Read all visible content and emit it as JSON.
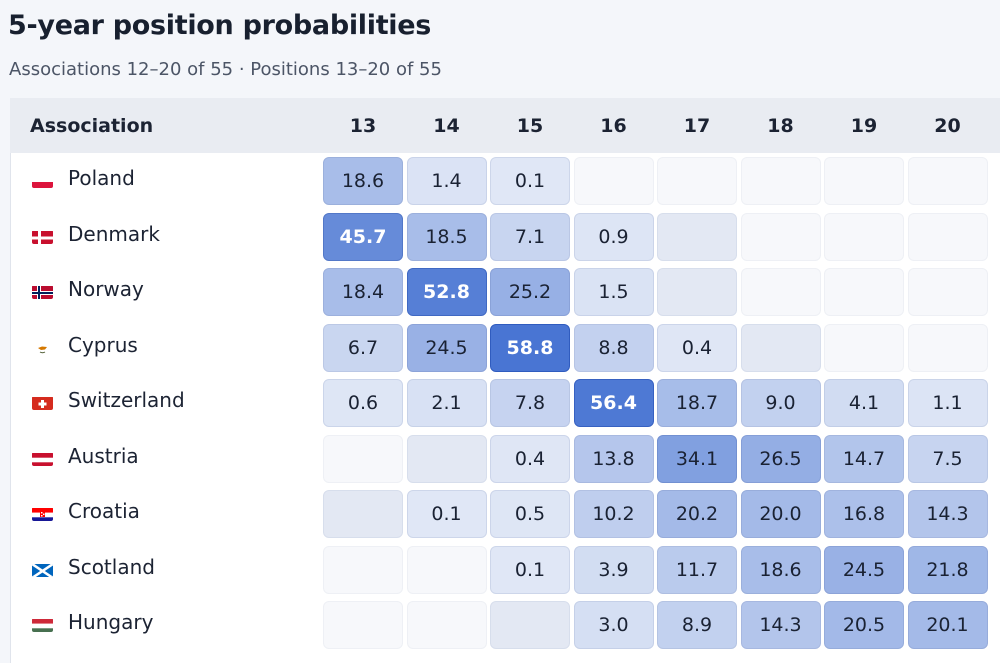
{
  "title": "5-year position probabilities",
  "subtitle": "Associations 12–20 of 55 · Positions 13–20 of 55",
  "colors": {
    "accent": "#4b78d6",
    "empty_cell": "#f4f6fa",
    "header_bg": "#e9ecf2"
  },
  "chart_data": {
    "type": "heatmap",
    "title": "5-year position probabilities",
    "subtitle": "Associations 12–20 of 55 · Positions 13–20 of 55",
    "row_header": "Association",
    "columns": [
      "13",
      "14",
      "15",
      "16",
      "17",
      "18",
      "19",
      "20"
    ],
    "rows": [
      {
        "name": "Poland",
        "flag": "poland-flag",
        "values": [
          "18.6",
          "1.4",
          "0.1",
          null,
          null,
          null,
          null,
          null
        ],
        "shaded_empty": [
          false,
          false,
          false,
          false,
          false,
          false,
          false,
          false
        ]
      },
      {
        "name": "Denmark",
        "flag": "denmark-flag",
        "values": [
          "45.7",
          "18.5",
          "7.1",
          "0.9",
          null,
          null,
          null,
          null
        ],
        "shaded_empty": [
          false,
          false,
          false,
          false,
          true,
          false,
          false,
          false
        ]
      },
      {
        "name": "Norway",
        "flag": "norway-flag",
        "values": [
          "18.4",
          "52.8",
          "25.2",
          "1.5",
          null,
          null,
          null,
          null
        ],
        "shaded_empty": [
          false,
          false,
          false,
          false,
          true,
          false,
          false,
          false
        ]
      },
      {
        "name": "Cyprus",
        "flag": "cyprus-flag",
        "values": [
          "6.7",
          "24.5",
          "58.8",
          "8.8",
          "0.4",
          null,
          null,
          null
        ],
        "shaded_empty": [
          false,
          false,
          false,
          false,
          false,
          true,
          false,
          false
        ]
      },
      {
        "name": "Switzerland",
        "flag": "switzerland-flag",
        "values": [
          "0.6",
          "2.1",
          "7.8",
          "56.4",
          "18.7",
          "9.0",
          "4.1",
          "1.1"
        ],
        "shaded_empty": [
          false,
          false,
          false,
          false,
          false,
          false,
          false,
          false
        ]
      },
      {
        "name": "Austria",
        "flag": "austria-flag",
        "values": [
          null,
          null,
          "0.4",
          "13.8",
          "34.1",
          "26.5",
          "14.7",
          "7.5"
        ],
        "shaded_empty": [
          false,
          true,
          false,
          false,
          false,
          false,
          false,
          false
        ]
      },
      {
        "name": "Croatia",
        "flag": "croatia-flag",
        "values": [
          null,
          "0.1",
          "0.5",
          "10.2",
          "20.2",
          "20.0",
          "16.8",
          "14.3"
        ],
        "shaded_empty": [
          true,
          false,
          false,
          false,
          false,
          false,
          false,
          false
        ]
      },
      {
        "name": "Scotland",
        "flag": "scotland-flag",
        "values": [
          null,
          null,
          "0.1",
          "3.9",
          "11.7",
          "18.6",
          "24.5",
          "21.8"
        ],
        "shaded_empty": [
          false,
          false,
          false,
          false,
          false,
          false,
          false,
          false
        ]
      },
      {
        "name": "Hungary",
        "flag": "hungary-flag",
        "values": [
          null,
          null,
          null,
          "3.0",
          "8.9",
          "14.3",
          "20.5",
          "20.1"
        ],
        "shaded_empty": [
          false,
          false,
          true,
          false,
          false,
          false,
          false,
          false
        ]
      }
    ]
  }
}
